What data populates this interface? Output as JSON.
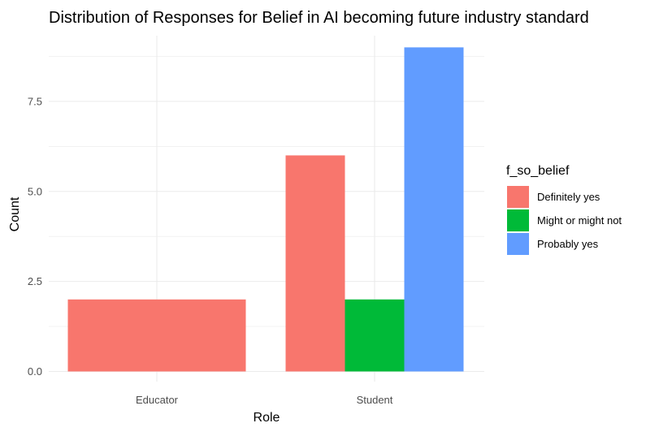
{
  "chart_data": {
    "type": "bar",
    "title": "Distribution of Responses for Belief in AI becoming future industry standard",
    "xlabel": "Role",
    "ylabel": "Count",
    "categories": [
      "Educator",
      "Student"
    ],
    "series": [
      {
        "name": "Definitely yes",
        "color": "#F8766D",
        "values": [
          2,
          6
        ]
      },
      {
        "name": "Might or might not",
        "color": "#00BA38",
        "values": [
          null,
          2
        ]
      },
      {
        "name": "Probably yes",
        "color": "#619CFF",
        "values": [
          null,
          9
        ]
      }
    ],
    "yticks": [
      0,
      2.5,
      5,
      7.5
    ],
    "ytick_labels": [
      "0.0",
      "2.5",
      "5.0",
      "7.5"
    ],
    "ylim": [
      0,
      9
    ],
    "legend": {
      "title": "f_so_belief",
      "position": "right"
    },
    "grid": true
  }
}
